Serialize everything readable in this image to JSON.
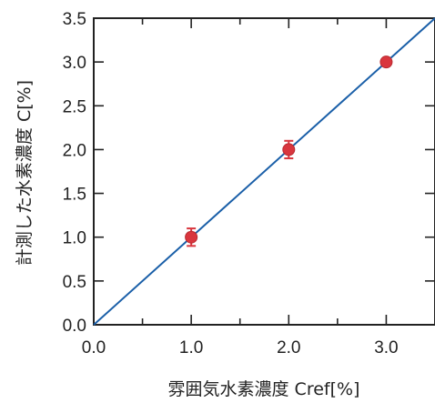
{
  "chart_data": {
    "type": "scatter",
    "xlabel": "雰囲気水素濃度 Cref[%]",
    "ylabel": "計測した水素濃度 C[%]",
    "xlim": [
      0.0,
      3.5
    ],
    "ylim": [
      0.0,
      3.5
    ],
    "x_tick_labels": [
      "0.0",
      "1.0",
      "2.0",
      "3.0"
    ],
    "x_tick_values": [
      0.0,
      1.0,
      2.0,
      3.0
    ],
    "y_tick_labels": [
      "0.0",
      "0.5",
      "1.0",
      "1.5",
      "2.0",
      "2.5",
      "3.0",
      "3.5"
    ],
    "y_tick_values": [
      0.0,
      0.5,
      1.0,
      1.5,
      2.0,
      2.5,
      3.0,
      3.5
    ],
    "grid": false,
    "series": [
      {
        "x": [
          1.0,
          2.0,
          3.0
        ],
        "y": [
          1.0,
          2.0,
          3.0
        ],
        "yerr": [
          0.1,
          0.1,
          0.03
        ],
        "marker": "circle",
        "color": "#d9363e"
      }
    ],
    "reference_line": {
      "x": [
        0.0,
        3.5
      ],
      "y": [
        0.0,
        3.5
      ],
      "color": "#1a5fa8"
    },
    "colors": {
      "axis": "#222222",
      "point": "#d9363e",
      "line": "#1a5fa8"
    }
  }
}
